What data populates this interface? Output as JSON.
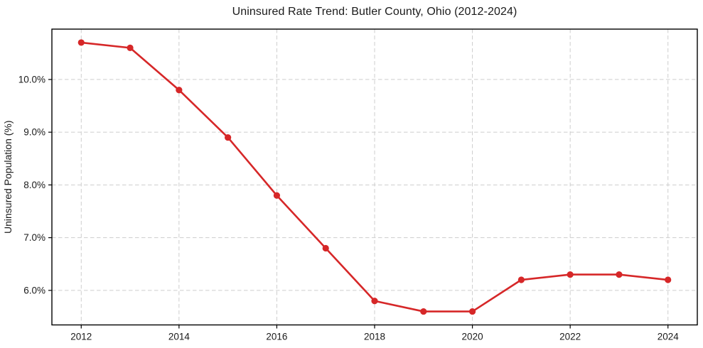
{
  "chart_data": {
    "type": "line",
    "title": "Uninsured Rate Trend: Butler County, Ohio (2012-2024)",
    "xlabel": "",
    "ylabel": "Uninsured Population (%)",
    "x": [
      2012,
      2013,
      2014,
      2015,
      2016,
      2017,
      2018,
      2019,
      2020,
      2021,
      2022,
      2023,
      2024
    ],
    "values": [
      10.7,
      10.6,
      9.8,
      8.9,
      7.8,
      6.8,
      5.8,
      5.6,
      5.6,
      6.2,
      6.3,
      6.3,
      6.2
    ],
    "x_ticks": [
      2012,
      2014,
      2016,
      2018,
      2020,
      2022,
      2024
    ],
    "y_ticks": [
      6.0,
      7.0,
      8.0,
      9.0,
      10.0
    ],
    "y_tick_labels": [
      "6.0%",
      "7.0%",
      "8.0%",
      "9.0%",
      "10.0%"
    ],
    "xlim": [
      2011.4,
      2024.6
    ],
    "ylim": [
      5.345,
      10.955
    ],
    "grid": true,
    "legend": "none",
    "line_color": "#d62728",
    "marker": "circle"
  }
}
